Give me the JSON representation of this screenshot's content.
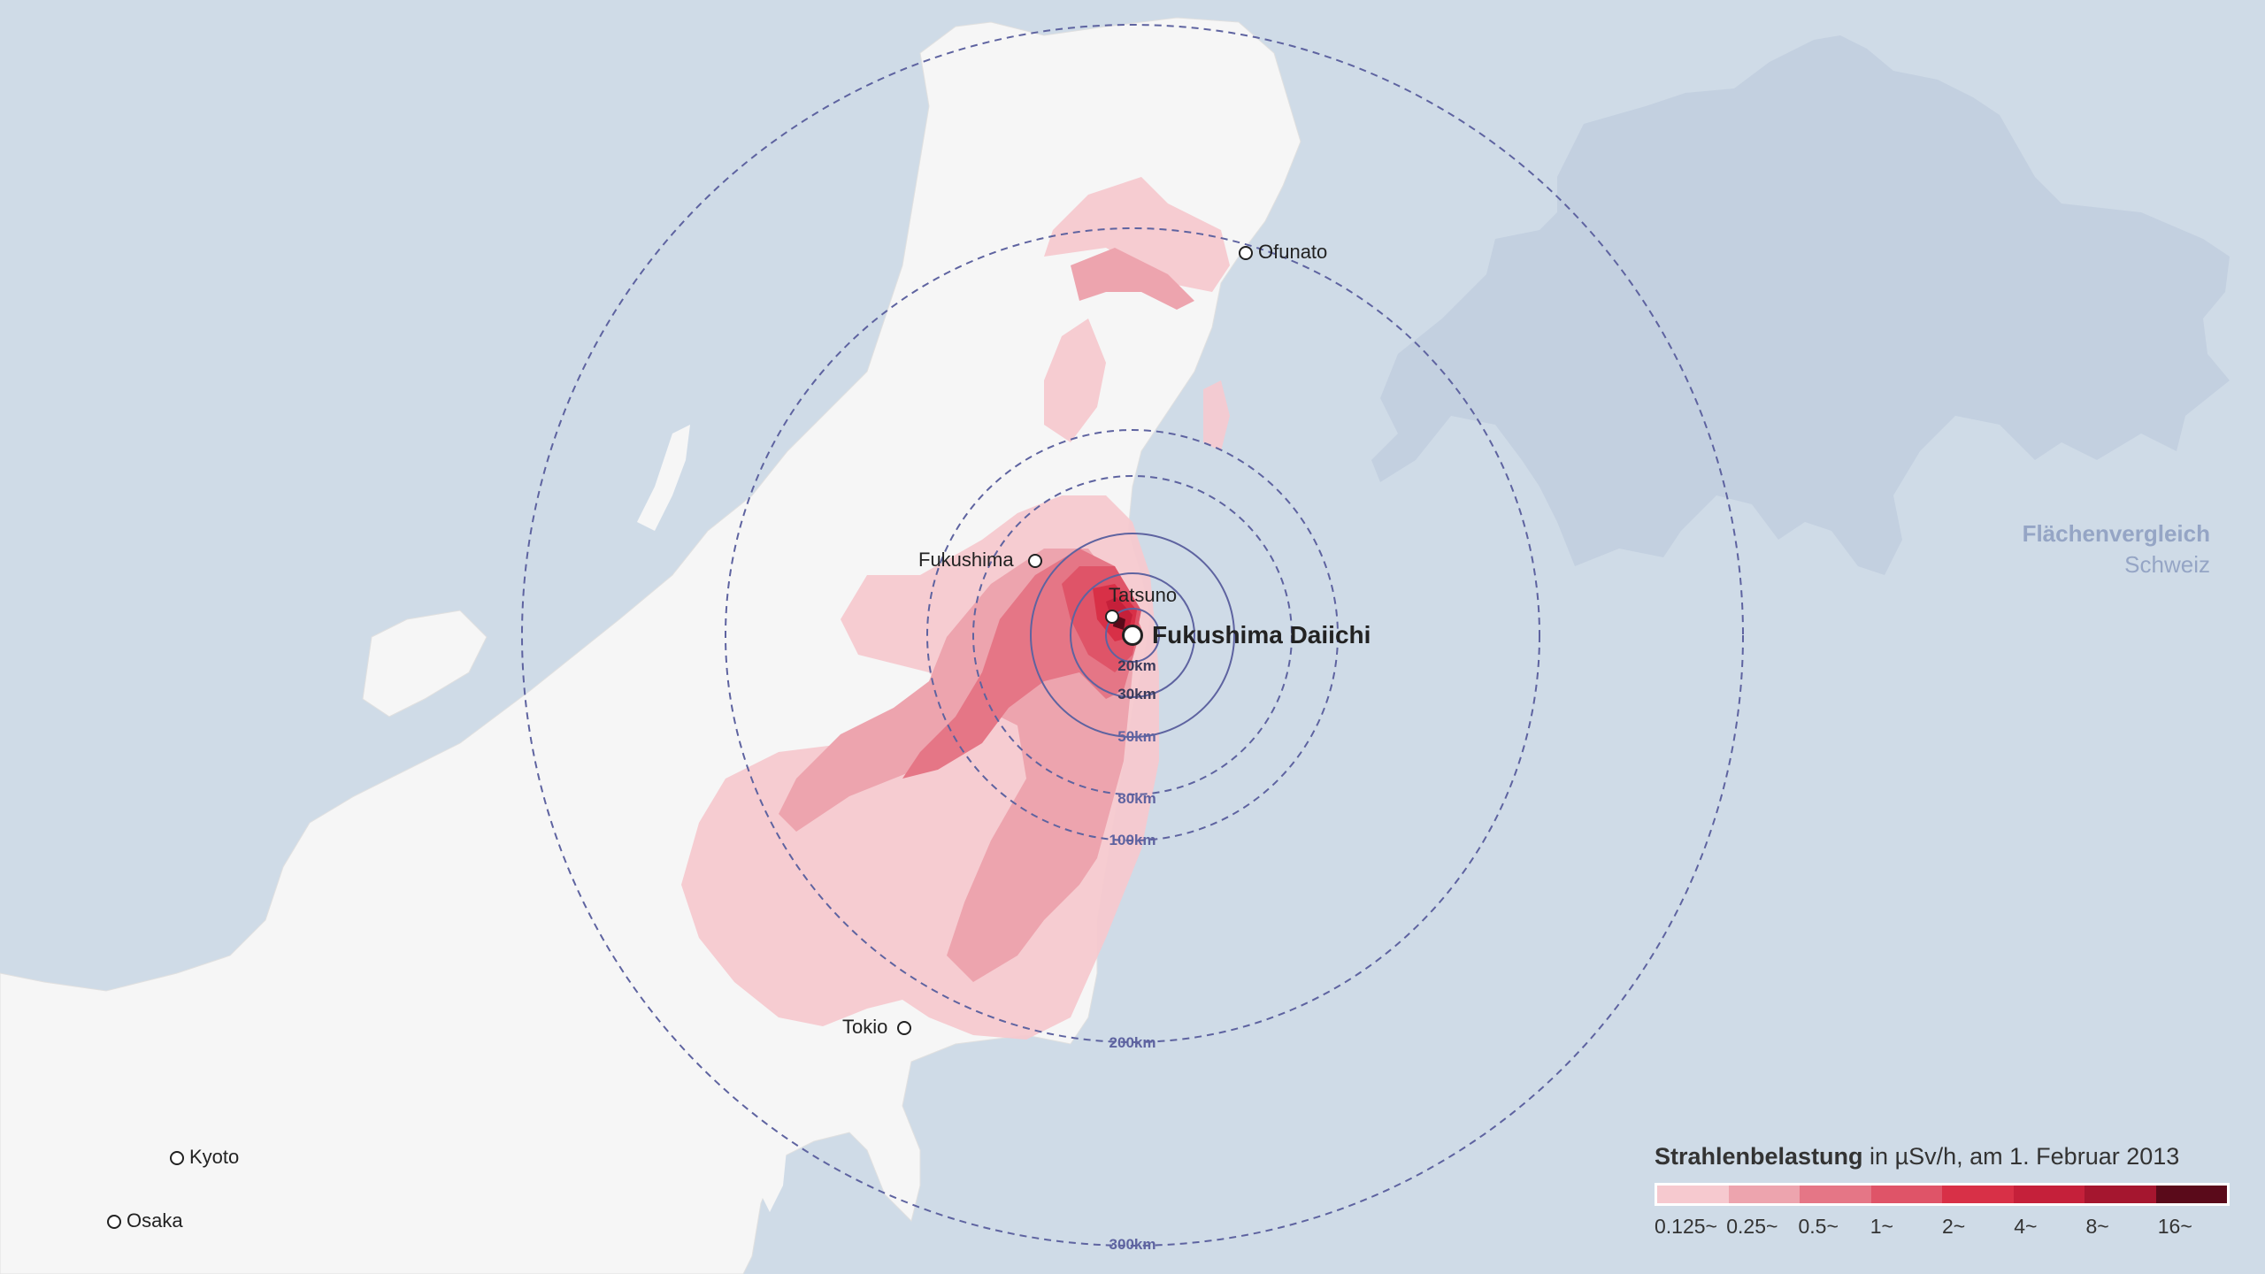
{
  "cities": [
    {
      "id": "ofunato",
      "name": "Ofunato"
    },
    {
      "id": "fukushima",
      "name": "Fukushima"
    },
    {
      "id": "tatsuno",
      "name": "Tatsuno"
    },
    {
      "id": "daiichi",
      "name": "Fukushima Daiichi"
    },
    {
      "id": "tokio",
      "name": "Tokio"
    },
    {
      "id": "kyoto",
      "name": "Kyoto"
    },
    {
      "id": "osaka",
      "name": "Osaka"
    }
  ],
  "rings": [
    "20km",
    "30km",
    "50km",
    "80km",
    "100km",
    "200km",
    "300km"
  ],
  "comparison": {
    "line1": "Flächenvergleich",
    "line2": "Schweiz"
  },
  "legend": {
    "title_bold": "Strahlenbelastung",
    "title_rest": " in µSv/h, am 1. Februar 2013",
    "classes": [
      "0.125~",
      "0.25~",
      "0.5~",
      "1~",
      "2~",
      "4~",
      "8~",
      "16~"
    ],
    "colors": [
      "#f6c9cf",
      "#eda4ae",
      "#e57686",
      "#df5468",
      "#d83047",
      "#c5203a",
      "#a5162f",
      "#5a0a1a"
    ]
  },
  "colors": {
    "sea": "#cfdbe7",
    "land": "#f6f6f6",
    "switzerland": "#c3d0e0",
    "rings": "#5e63a0"
  }
}
